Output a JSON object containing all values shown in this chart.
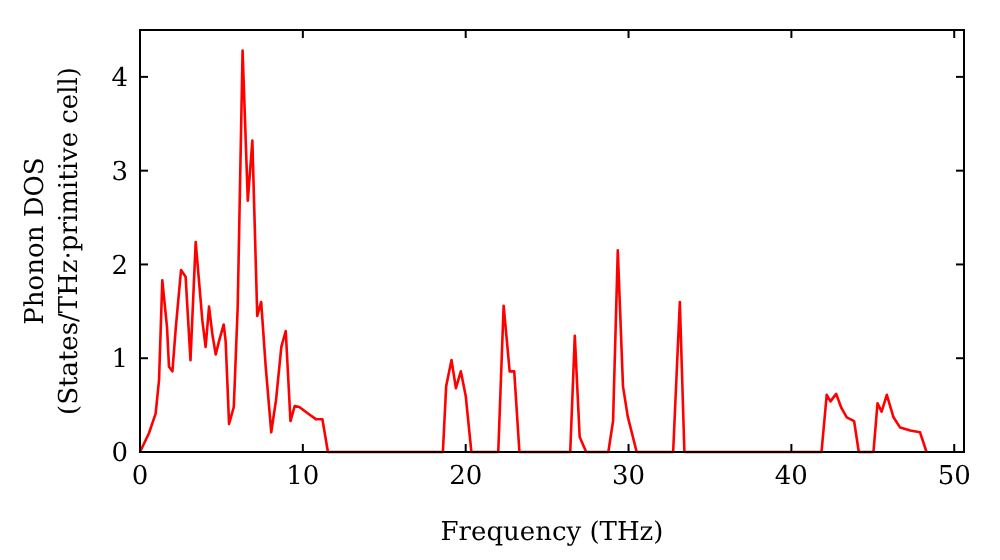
{
  "chart_data": {
    "type": "line",
    "xlabel": "Frequency (THz)",
    "ylabel": "Phonon DOS\n(States/THz·primitive cell)",
    "xlim": [
      0,
      50.6
    ],
    "ylim": [
      0,
      4.5
    ],
    "xticks": [
      0,
      10,
      20,
      30,
      40,
      50
    ],
    "yticks": [
      0,
      1,
      2,
      3,
      4
    ],
    "grid": false,
    "marker": "none",
    "line_style": "solid",
    "series": [
      {
        "color": "#ff0000",
        "x": [
          0,
          0.55,
          0.96,
          1.17,
          1.37,
          1.66,
          1.78,
          1.99,
          2.2,
          2.52,
          2.8,
          3.1,
          3.42,
          3.62,
          3.83,
          4.03,
          4.24,
          4.44,
          4.65,
          4.85,
          5.14,
          5.26,
          5.47,
          5.76,
          6.0,
          6.3,
          6.62,
          6.9,
          7.2,
          7.44,
          7.72,
          8.06,
          8.35,
          8.68,
          8.95,
          9.24,
          9.5,
          9.78,
          10.4,
          10.8,
          11.2,
          11.54,
          18.6,
          18.8,
          19.13,
          19.4,
          19.7,
          20.0,
          20.35,
          22.0,
          22.33,
          22.7,
          22.98,
          23.3,
          26.42,
          26.7,
          27.0,
          27.4,
          28.76,
          29.05,
          29.34,
          29.66,
          29.95,
          30.5,
          32.74,
          33.15,
          33.43,
          41.85,
          42.17,
          42.4,
          42.75,
          43.07,
          43.4,
          43.85,
          44.14,
          45.04,
          45.29,
          45.54,
          45.86,
          46.27,
          46.68,
          47.3,
          47.9,
          48.3
        ],
        "values": [
          0,
          0.2,
          0.41,
          0.77,
          1.83,
          1.33,
          0.91,
          0.86,
          1.33,
          1.94,
          1.87,
          0.98,
          2.24,
          1.83,
          1.4,
          1.12,
          1.55,
          1.26,
          1.04,
          1.18,
          1.36,
          1.18,
          0.3,
          0.48,
          1.55,
          4.28,
          2.68,
          3.32,
          1.45,
          1.6,
          0.91,
          0.21,
          0.55,
          1.12,
          1.29,
          0.33,
          0.49,
          0.48,
          0.4,
          0.35,
          0.35,
          0,
          0,
          0.7,
          0.98,
          0.68,
          0.86,
          0.6,
          0,
          0,
          1.56,
          0.86,
          0.86,
          0,
          0,
          1.24,
          0.16,
          0,
          0,
          0.33,
          2.15,
          0.7,
          0.38,
          0,
          0,
          1.6,
          0,
          0,
          0.61,
          0.54,
          0.62,
          0.47,
          0.37,
          0.33,
          0,
          0,
          0.52,
          0.43,
          0.61,
          0.37,
          0.26,
          0.23,
          0.21,
          0
        ]
      }
    ]
  }
}
